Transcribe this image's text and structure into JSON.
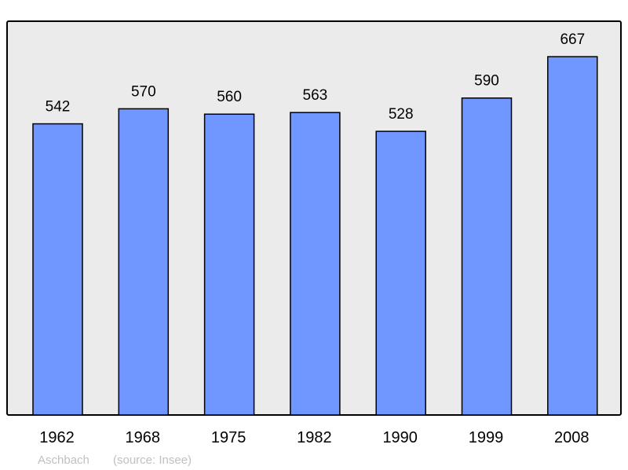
{
  "chart_data": {
    "type": "bar",
    "categories": [
      "1962",
      "1968",
      "1975",
      "1982",
      "1990",
      "1999",
      "2008"
    ],
    "values": [
      542,
      570,
      560,
      563,
      528,
      590,
      667
    ],
    "ylim": [
      0,
      733
    ],
    "grid": false,
    "colors": {
      "bar": "#7096ff",
      "background": "#ebebeb",
      "border": "#000000"
    }
  },
  "footer": {
    "place": "Aschbach",
    "source": "(source: Insee)"
  }
}
